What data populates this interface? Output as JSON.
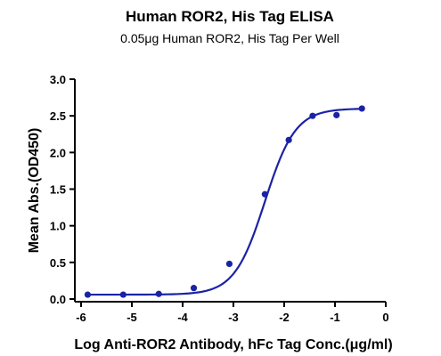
{
  "chart_data": {
    "type": "scatter",
    "title": "Human ROR2, His Tag ELISA",
    "subtitle": "0.05μg Human ROR2, His Tag Per Well",
    "xlabel": "Log Anti-ROR2 Antibody, hFc Tag Conc.(μg/ml)",
    "ylabel": "Mean Abs.(OD450)",
    "xlim": [
      -6,
      0
    ],
    "ylim": [
      0,
      3.0
    ],
    "x_ticks": [
      -6,
      -5,
      -4,
      -3,
      -2,
      -1,
      0
    ],
    "x_tick_labels": [
      "-6",
      "-5",
      "-4",
      "-3",
      "-2",
      "-1",
      "0"
    ],
    "y_ticks": [
      0,
      0.5,
      1.0,
      1.5,
      2.0,
      2.5,
      3.0
    ],
    "y_tick_labels": [
      "0.0",
      "0.5",
      "1.0",
      "1.5",
      "2.0",
      "2.5",
      "3.0"
    ],
    "grid": false,
    "points": {
      "x": [
        -5.87,
        -5.17,
        -4.47,
        -3.78,
        -3.08,
        -2.38,
        -1.91,
        -1.44,
        -0.97,
        -0.47
      ],
      "y": [
        0.06,
        0.06,
        0.07,
        0.15,
        0.48,
        1.43,
        2.17,
        2.5,
        2.51,
        2.6
      ]
    },
    "fit_curve": {
      "model": "4PL",
      "bottom": 0.06,
      "top": 2.6,
      "logEC50": -2.38,
      "hill": 1.45
    },
    "color": "#1a23a6"
  }
}
